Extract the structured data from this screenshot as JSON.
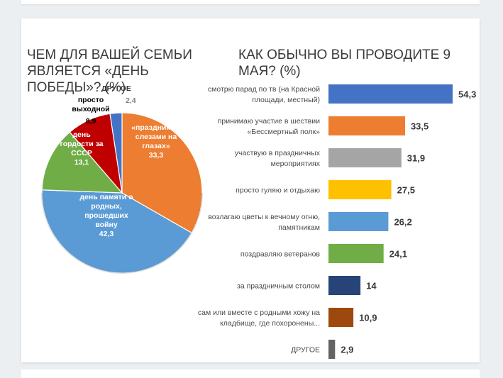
{
  "chart_data": [
    {
      "type": "pie",
      "title": "ЧЕМ ДЛЯ ВАШЕЙ СЕМЬИ ЯВЛЯЕТСЯ «ДЕНЬ ПОБЕДЫ»? (%)",
      "slices": [
        {
          "label_lines": [
            "«праздник со",
            "слезами на",
            "глазах»"
          ],
          "value": 33.3,
          "value_label": "33,3",
          "color": "#ed7d31"
        },
        {
          "label_lines": [
            "день памяти о",
            "родных,",
            "прошедших",
            "войну"
          ],
          "value": 42.3,
          "value_label": "42,3",
          "color": "#5b9bd5"
        },
        {
          "label_lines": [
            "день",
            "гордости за",
            "СССР"
          ],
          "value": 13.1,
          "value_label": "13,1",
          "color": "#70ad47"
        },
        {
          "label_lines": [
            "просто",
            "выходной"
          ],
          "value": 8.9,
          "value_label": "8,9",
          "color": "#c00000"
        },
        {
          "label_lines": [
            "ДРУГОЕ"
          ],
          "value": 2.4,
          "value_label": "2,4",
          "color": "#4472c4"
        }
      ]
    },
    {
      "type": "bar",
      "orientation": "horizontal",
      "title": "КАК ОБЫЧНО ВЫ ПРОВОДИТЕ 9 МАЯ? (%)",
      "categories": [
        [
          "смотрю парад по тв (на Красной",
          "площади, местный)"
        ],
        [
          "принимаю участие в шествии",
          "«Бессмертный полк»"
        ],
        [
          "участвую в праздничных",
          "мероприятиях"
        ],
        [
          "просто гуляю и отдыхаю"
        ],
        [
          "возлагаю цветы к вечному огню,",
          "памятникам"
        ],
        [
          "поздравляю ветеранов"
        ],
        [
          "за праздничным столом"
        ],
        [
          "сам или вместе с родными хожу на",
          "кладбище, где похоронены..."
        ],
        [
          "ДРУГОЕ"
        ]
      ],
      "values": [
        54.3,
        33.5,
        31.9,
        27.5,
        26.2,
        24.1,
        14,
        10.9,
        2.9
      ],
      "value_labels": [
        "54,3",
        "33,5",
        "31,9",
        "27,5",
        "26,2",
        "24,1",
        "14",
        "10,9",
        "2,9"
      ],
      "colors": [
        "#4472c4",
        "#ed7d31",
        "#a5a5a5",
        "#ffc000",
        "#5b9bd5",
        "#70ad47",
        "#264478",
        "#9e480e",
        "#636363"
      ],
      "xlim": [
        0,
        54.3
      ]
    }
  ]
}
